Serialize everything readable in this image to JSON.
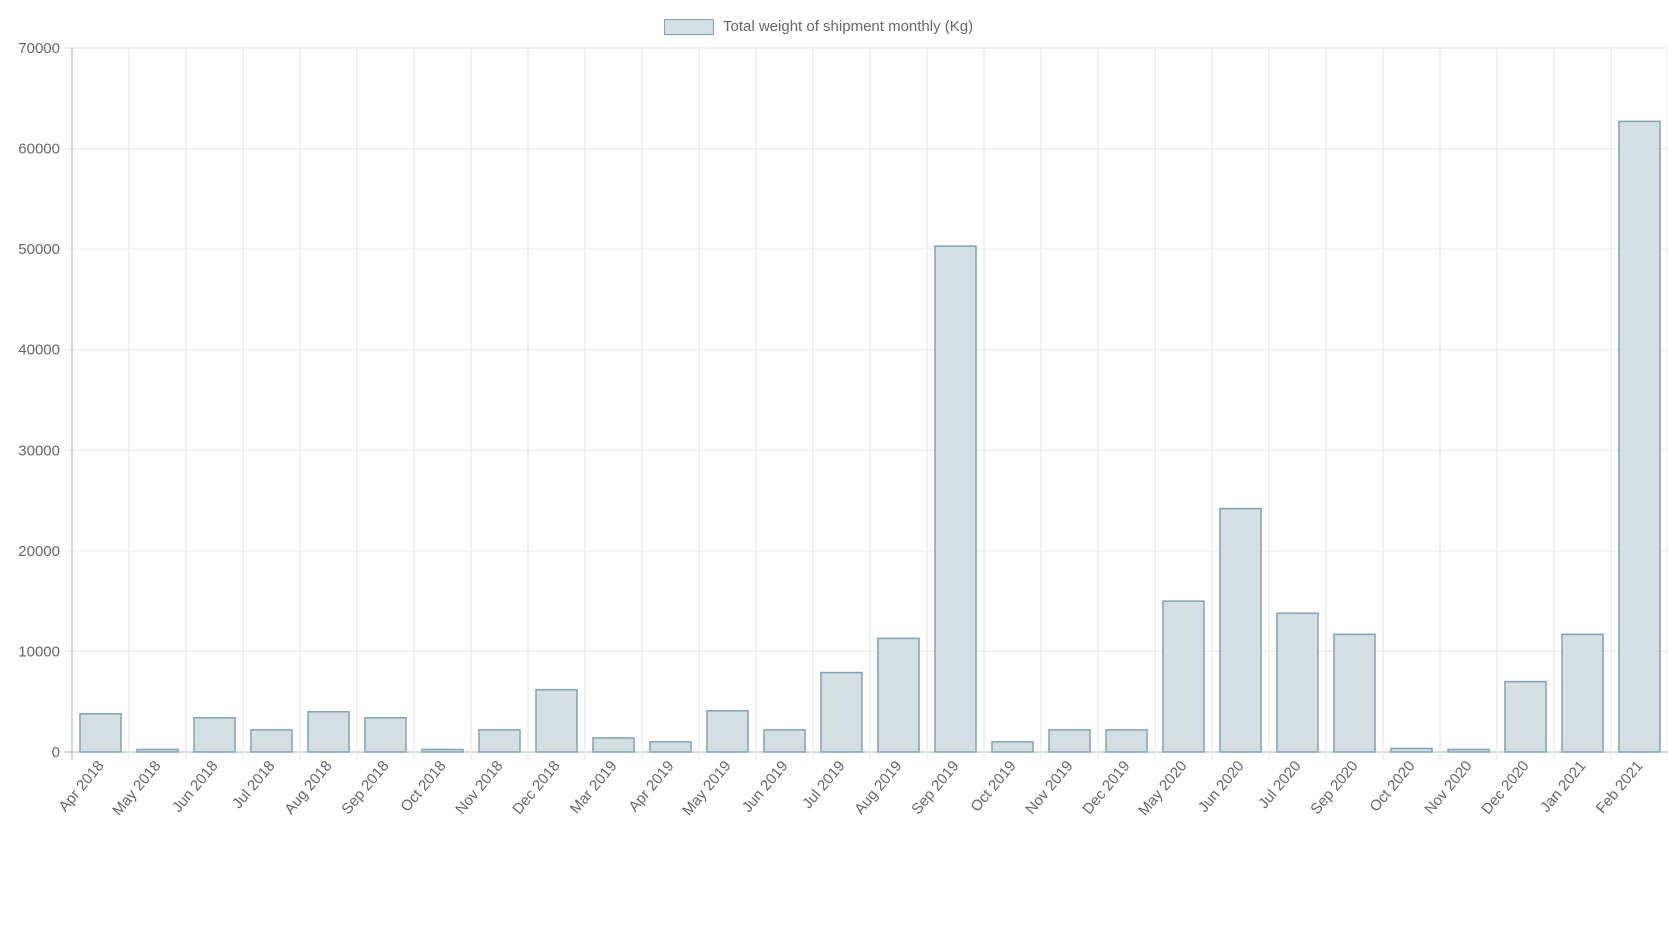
{
  "chart_data": {
    "type": "bar",
    "title": "",
    "xlabel": "",
    "ylabel": "",
    "categories": [
      "Apr 2018",
      "May 2018",
      "Jun 2018",
      "Jul 2018",
      "Aug 2018",
      "Sep 2018",
      "Oct 2018",
      "Nov 2018",
      "Dec 2018",
      "Mar 2019",
      "Apr 2019",
      "May 2019",
      "Jun 2019",
      "Jul 2019",
      "Aug 2019",
      "Sep 2019",
      "Oct 2019",
      "Nov 2019",
      "Dec 2019",
      "May 2020",
      "Jun 2020",
      "Jul 2020",
      "Sep 2020",
      "Oct 2020",
      "Nov 2020",
      "Dec 2020",
      "Jan 2021",
      "Feb 2021"
    ],
    "series": [
      {
        "name": "Total weight of shipment monthly (Kg)",
        "values": [
          3800,
          250,
          3400,
          2200,
          4000,
          3400,
          250,
          2200,
          6200,
          1400,
          1000,
          4100,
          2200,
          7900,
          11300,
          50300,
          1000,
          2200,
          2200,
          15000,
          24200,
          13800,
          11700,
          350,
          250,
          7000,
          11700,
          62700
        ]
      }
    ],
    "ylim": [
      0,
      70000
    ],
    "yticks": [
      "0",
      "10000",
      "20000",
      "30000",
      "40000",
      "50000",
      "60000",
      "70000"
    ],
    "grid": true,
    "legend_position": "top-center",
    "colors": {
      "bar_fill": "#d3dfe3",
      "bar_border": "#7fa3b2",
      "grid": "#e6e6e6",
      "axis": "#b3b3b3",
      "text": "#666666"
    }
  }
}
